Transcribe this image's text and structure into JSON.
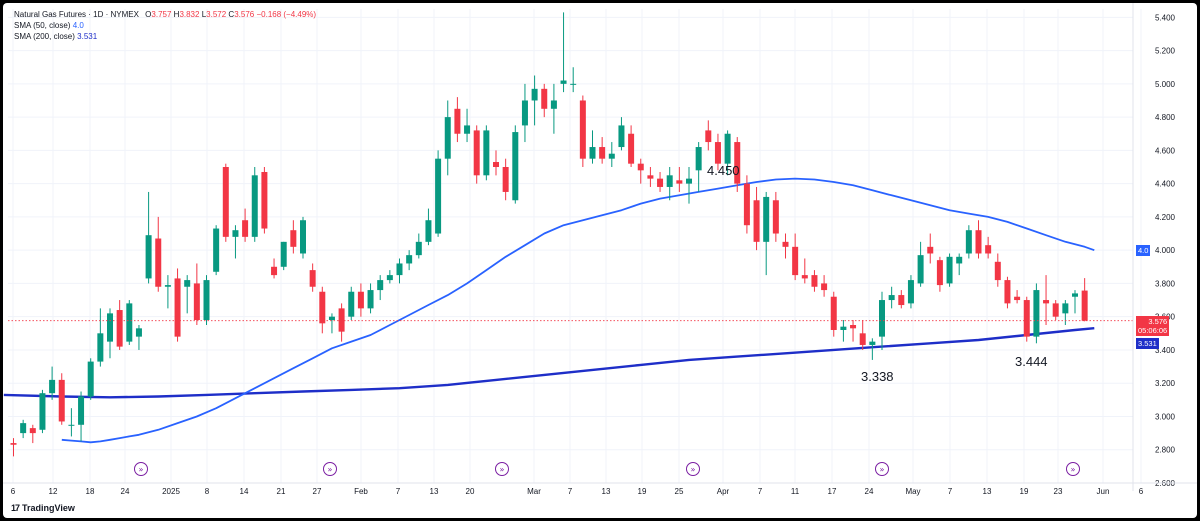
{
  "legend": {
    "title": "Natural Gas Futures · 1D · NYMEX",
    "o_label": "O",
    "o": "3.757",
    "h_label": "H",
    "h": "3.832",
    "l_label": "L",
    "l": "3.572",
    "c_label": "C",
    "c": "3.576",
    "change": "−0.168 (−4.49%)",
    "sma50_label": "SMA (50, close)",
    "sma50_value": "4.0",
    "sma200_label": "SMA (200, close)",
    "sma200_value": "3.531"
  },
  "price_tags": {
    "sma50": "4.0",
    "last": "3.576",
    "countdown": "05:06:06",
    "sma200": "3.531"
  },
  "annotations": [
    "4.450",
    "3.338",
    "3.444"
  ],
  "branding": {
    "logo": "17",
    "name": "TradingView"
  },
  "colors": {
    "up": "#089981",
    "down": "#f23645",
    "sma50": "#2962ff",
    "sma200": "#1e2ec8",
    "last_tag": "#f23645",
    "sma200_tag": "#1e2ec8",
    "sma50_tag": "#2962ff"
  },
  "chart_data": {
    "type": "candlestick",
    "y_ticks": [
      "2.600",
      "2.800",
      "3.000",
      "3.200",
      "3.400",
      "3.600",
      "3.800",
      "4.000",
      "4.200",
      "4.400",
      "4.600",
      "4.800",
      "5.000",
      "5.200",
      "5.400"
    ],
    "ylim": [
      2.6,
      5.45
    ],
    "x_ticks": [
      "6",
      "12",
      "18",
      "24",
      "2025",
      "8",
      "14",
      "21",
      "27",
      "Feb",
      "7",
      "13",
      "20",
      "Mar",
      "7",
      "13",
      "19",
      "25",
      "Apr",
      "7",
      "11",
      "17",
      "24",
      "May",
      "7",
      "13",
      "19",
      "23",
      "Jun",
      "6"
    ],
    "candles": [
      {
        "o": 2.84,
        "h": 2.87,
        "l": 2.76,
        "c": 2.83
      },
      {
        "o": 2.9,
        "h": 2.98,
        "l": 2.87,
        "c": 2.96
      },
      {
        "o": 2.93,
        "h": 2.95,
        "l": 2.84,
        "c": 2.9
      },
      {
        "o": 2.92,
        "h": 3.16,
        "l": 2.9,
        "c": 3.14
      },
      {
        "o": 3.14,
        "h": 3.3,
        "l": 3.1,
        "c": 3.22
      },
      {
        "o": 3.22,
        "h": 3.26,
        "l": 2.95,
        "c": 2.97
      },
      {
        "o": 2.95,
        "h": 3.05,
        "l": 2.88,
        "c": 2.95
      },
      {
        "o": 2.95,
        "h": 3.15,
        "l": 2.85,
        "c": 3.12
      },
      {
        "o": 3.12,
        "h": 3.35,
        "l": 3.1,
        "c": 3.33
      },
      {
        "o": 3.33,
        "h": 3.65,
        "l": 3.3,
        "c": 3.5
      },
      {
        "o": 3.45,
        "h": 3.65,
        "l": 3.35,
        "c": 3.62
      },
      {
        "o": 3.64,
        "h": 3.7,
        "l": 3.4,
        "c": 3.42
      },
      {
        "o": 3.45,
        "h": 3.7,
        "l": 3.43,
        "c": 3.68
      },
      {
        "o": 3.48,
        "h": 3.55,
        "l": 3.4,
        "c": 3.53
      },
      {
        "o": 3.83,
        "h": 4.35,
        "l": 3.8,
        "c": 4.09
      },
      {
        "o": 4.07,
        "h": 4.2,
        "l": 3.75,
        "c": 3.78
      },
      {
        "o": 3.78,
        "h": 3.85,
        "l": 3.65,
        "c": 3.79
      },
      {
        "o": 3.83,
        "h": 3.89,
        "l": 3.45,
        "c": 3.48
      },
      {
        "o": 3.78,
        "h": 3.85,
        "l": 3.62,
        "c": 3.82
      },
      {
        "o": 3.8,
        "h": 3.92,
        "l": 3.55,
        "c": 3.58
      },
      {
        "o": 3.58,
        "h": 3.85,
        "l": 3.55,
        "c": 3.82
      },
      {
        "o": 3.87,
        "h": 4.15,
        "l": 3.85,
        "c": 4.13
      },
      {
        "o": 4.5,
        "h": 4.52,
        "l": 4.05,
        "c": 4.08
      },
      {
        "o": 4.08,
        "h": 4.15,
        "l": 3.95,
        "c": 4.12
      },
      {
        "o": 4.18,
        "h": 4.25,
        "l": 4.05,
        "c": 4.08
      },
      {
        "o": 4.08,
        "h": 4.5,
        "l": 4.05,
        "c": 4.45
      },
      {
        "o": 4.47,
        "h": 4.5,
        "l": 4.1,
        "c": 4.13
      },
      {
        "o": 3.9,
        "h": 3.95,
        "l": 3.83,
        "c": 3.85
      },
      {
        "o": 3.9,
        "h": 4.05,
        "l": 3.88,
        "c": 4.05
      },
      {
        "o": 4.12,
        "h": 4.18,
        "l": 3.98,
        "c": 4.02
      },
      {
        "o": 3.98,
        "h": 4.2,
        "l": 3.95,
        "c": 4.18
      },
      {
        "o": 3.88,
        "h": 3.92,
        "l": 3.75,
        "c": 3.78
      },
      {
        "o": 3.75,
        "h": 3.78,
        "l": 3.5,
        "c": 3.56
      },
      {
        "o": 3.58,
        "h": 3.62,
        "l": 3.5,
        "c": 3.6
      },
      {
        "o": 3.65,
        "h": 3.68,
        "l": 3.45,
        "c": 3.51
      },
      {
        "o": 3.6,
        "h": 3.78,
        "l": 3.58,
        "c": 3.75
      },
      {
        "o": 3.75,
        "h": 3.8,
        "l": 3.6,
        "c": 3.65
      },
      {
        "o": 3.65,
        "h": 3.8,
        "l": 3.62,
        "c": 3.76
      },
      {
        "o": 3.76,
        "h": 3.85,
        "l": 3.7,
        "c": 3.82
      },
      {
        "o": 3.82,
        "h": 3.88,
        "l": 3.8,
        "c": 3.85
      },
      {
        "o": 3.85,
        "h": 3.95,
        "l": 3.8,
        "c": 3.92
      },
      {
        "o": 3.92,
        "h": 4.0,
        "l": 3.88,
        "c": 3.97
      },
      {
        "o": 3.97,
        "h": 4.1,
        "l": 3.95,
        "c": 4.05
      },
      {
        "o": 4.05,
        "h": 4.25,
        "l": 4.03,
        "c": 4.18
      },
      {
        "o": 4.1,
        "h": 4.6,
        "l": 4.08,
        "c": 4.55
      },
      {
        "o": 4.55,
        "h": 4.9,
        "l": 4.45,
        "c": 4.8
      },
      {
        "o": 4.85,
        "h": 4.92,
        "l": 4.65,
        "c": 4.7
      },
      {
        "o": 4.7,
        "h": 4.85,
        "l": 4.65,
        "c": 4.75
      },
      {
        "o": 4.72,
        "h": 4.75,
        "l": 4.4,
        "c": 4.45
      },
      {
        "o": 4.45,
        "h": 4.75,
        "l": 4.42,
        "c": 4.72
      },
      {
        "o": 4.53,
        "h": 4.6,
        "l": 4.45,
        "c": 4.5
      },
      {
        "o": 4.5,
        "h": 4.55,
        "l": 4.3,
        "c": 4.35
      },
      {
        "o": 4.3,
        "h": 4.75,
        "l": 4.28,
        "c": 4.71
      },
      {
        "o": 4.75,
        "h": 5.0,
        "l": 4.65,
        "c": 4.9
      },
      {
        "o": 4.9,
        "h": 5.05,
        "l": 4.75,
        "c": 4.97
      },
      {
        "o": 4.97,
        "h": 5.0,
        "l": 4.8,
        "c": 4.85
      },
      {
        "o": 4.85,
        "h": 5.0,
        "l": 4.7,
        "c": 4.9
      },
      {
        "o": 5.0,
        "h": 5.43,
        "l": 4.95,
        "c": 5.02
      },
      {
        "o": 5.0,
        "h": 5.1,
        "l": 4.95,
        "c": 5.0
      },
      {
        "o": 4.9,
        "h": 4.93,
        "l": 4.5,
        "c": 4.55
      },
      {
        "o": 4.55,
        "h": 4.72,
        "l": 4.52,
        "c": 4.62
      },
      {
        "o": 4.62,
        "h": 4.68,
        "l": 4.52,
        "c": 4.55
      },
      {
        "o": 4.55,
        "h": 4.65,
        "l": 4.5,
        "c": 4.58
      },
      {
        "o": 4.62,
        "h": 4.8,
        "l": 4.6,
        "c": 4.75
      },
      {
        "o": 4.7,
        "h": 4.75,
        "l": 4.5,
        "c": 4.52
      },
      {
        "o": 4.52,
        "h": 4.55,
        "l": 4.4,
        "c": 4.48
      },
      {
        "o": 4.45,
        "h": 4.5,
        "l": 4.38,
        "c": 4.43
      },
      {
        "o": 4.43,
        "h": 4.47,
        "l": 4.35,
        "c": 4.38
      },
      {
        "o": 4.38,
        "h": 4.5,
        "l": 4.3,
        "c": 4.45
      },
      {
        "o": 4.42,
        "h": 4.5,
        "l": 4.35,
        "c": 4.4
      },
      {
        "o": 4.4,
        "h": 4.5,
        "l": 4.28,
        "c": 4.43
      },
      {
        "o": 4.48,
        "h": 4.65,
        "l": 4.35,
        "c": 4.62
      },
      {
        "o": 4.72,
        "h": 4.78,
        "l": 4.6,
        "c": 4.65
      },
      {
        "o": 4.65,
        "h": 4.7,
        "l": 4.48,
        "c": 4.52
      },
      {
        "o": 4.52,
        "h": 4.72,
        "l": 4.45,
        "c": 4.7
      },
      {
        "o": 4.65,
        "h": 4.68,
        "l": 4.35,
        "c": 4.4
      },
      {
        "o": 4.4,
        "h": 4.45,
        "l": 4.1,
        "c": 4.15
      },
      {
        "o": 4.3,
        "h": 4.38,
        "l": 4.0,
        "c": 4.05
      },
      {
        "o": 4.05,
        "h": 4.35,
        "l": 3.85,
        "c": 4.32
      },
      {
        "o": 4.3,
        "h": 4.35,
        "l": 4.05,
        "c": 4.1
      },
      {
        "o": 4.05,
        "h": 4.1,
        "l": 3.95,
        "c": 4.02
      },
      {
        "o": 4.02,
        "h": 4.1,
        "l": 3.82,
        "c": 3.85
      },
      {
        "o": 3.85,
        "h": 3.95,
        "l": 3.8,
        "c": 3.83
      },
      {
        "o": 3.85,
        "h": 3.88,
        "l": 3.75,
        "c": 3.78
      },
      {
        "o": 3.8,
        "h": 3.85,
        "l": 3.72,
        "c": 3.76
      },
      {
        "o": 3.72,
        "h": 3.75,
        "l": 3.48,
        "c": 3.52
      },
      {
        "o": 3.52,
        "h": 3.58,
        "l": 3.45,
        "c": 3.54
      },
      {
        "o": 3.55,
        "h": 3.58,
        "l": 3.45,
        "c": 3.53
      },
      {
        "o": 3.5,
        "h": 3.58,
        "l": 3.4,
        "c": 3.43
      },
      {
        "o": 3.43,
        "h": 3.47,
        "l": 3.34,
        "c": 3.45
      },
      {
        "o": 3.48,
        "h": 3.75,
        "l": 3.4,
        "c": 3.7
      },
      {
        "o": 3.7,
        "h": 3.78,
        "l": 3.65,
        "c": 3.73
      },
      {
        "o": 3.73,
        "h": 3.76,
        "l": 3.65,
        "c": 3.67
      },
      {
        "o": 3.68,
        "h": 3.85,
        "l": 3.65,
        "c": 3.82
      },
      {
        "o": 3.8,
        "h": 4.05,
        "l": 3.78,
        "c": 3.97
      },
      {
        "o": 4.02,
        "h": 4.1,
        "l": 3.92,
        "c": 3.98
      },
      {
        "o": 3.94,
        "h": 3.96,
        "l": 3.75,
        "c": 3.79
      },
      {
        "o": 3.8,
        "h": 3.98,
        "l": 3.78,
        "c": 3.96
      },
      {
        "o": 3.92,
        "h": 3.98,
        "l": 3.85,
        "c": 3.96
      },
      {
        "o": 3.98,
        "h": 4.15,
        "l": 3.95,
        "c": 4.12
      },
      {
        "o": 4.12,
        "h": 4.18,
        "l": 3.95,
        "c": 3.98
      },
      {
        "o": 4.03,
        "h": 4.08,
        "l": 3.95,
        "c": 3.98
      },
      {
        "o": 3.93,
        "h": 3.98,
        "l": 3.78,
        "c": 3.82
      },
      {
        "o": 3.82,
        "h": 3.84,
        "l": 3.65,
        "c": 3.68
      },
      {
        "o": 3.72,
        "h": 3.76,
        "l": 3.68,
        "c": 3.7
      },
      {
        "o": 3.7,
        "h": 3.72,
        "l": 3.45,
        "c": 3.48
      },
      {
        "o": 3.48,
        "h": 3.8,
        "l": 3.44,
        "c": 3.76
      },
      {
        "o": 3.7,
        "h": 3.85,
        "l": 3.55,
        "c": 3.68
      },
      {
        "o": 3.68,
        "h": 3.7,
        "l": 3.58,
        "c": 3.6
      },
      {
        "o": 3.62,
        "h": 3.7,
        "l": 3.55,
        "c": 3.68
      },
      {
        "o": 3.72,
        "h": 3.76,
        "l": 3.62,
        "c": 3.74
      },
      {
        "o": 3.757,
        "h": 3.832,
        "l": 3.572,
        "c": 3.576
      }
    ],
    "sma50": [
      [
        5,
        2.86
      ],
      [
        6,
        2.855
      ],
      [
        7,
        2.85
      ],
      [
        8,
        2.845
      ],
      [
        9,
        2.85
      ],
      [
        10,
        2.86
      ],
      [
        11,
        2.87
      ],
      [
        12,
        2.88
      ],
      [
        13,
        2.89
      ],
      [
        15,
        2.92
      ],
      [
        17,
        2.96
      ],
      [
        19,
        3.0
      ],
      [
        21,
        3.05
      ],
      [
        23,
        3.11
      ],
      [
        25,
        3.17
      ],
      [
        27,
        3.23
      ],
      [
        29,
        3.29
      ],
      [
        31,
        3.35
      ],
      [
        33,
        3.41
      ],
      [
        35,
        3.45
      ],
      [
        37,
        3.49
      ],
      [
        39,
        3.55
      ],
      [
        41,
        3.61
      ],
      [
        43,
        3.67
      ],
      [
        45,
        3.73
      ],
      [
        47,
        3.8
      ],
      [
        49,
        3.88
      ],
      [
        51,
        3.96
      ],
      [
        53,
        4.03
      ],
      [
        55,
        4.1
      ],
      [
        57,
        4.15
      ],
      [
        59,
        4.18
      ],
      [
        61,
        4.21
      ],
      [
        63,
        4.24
      ],
      [
        65,
        4.28
      ],
      [
        67,
        4.31
      ],
      [
        69,
        4.33
      ],
      [
        71,
        4.35
      ],
      [
        73,
        4.37
      ],
      [
        75,
        4.39
      ],
      [
        77,
        4.41
      ],
      [
        79,
        4.425
      ],
      [
        81,
        4.43
      ],
      [
        83,
        4.425
      ],
      [
        85,
        4.41
      ],
      [
        87,
        4.39
      ],
      [
        89,
        4.36
      ],
      [
        91,
        4.33
      ],
      [
        93,
        4.3
      ],
      [
        95,
        4.27
      ],
      [
        97,
        4.24
      ],
      [
        99,
        4.22
      ],
      [
        101,
        4.2
      ],
      [
        103,
        4.17
      ],
      [
        105,
        4.13
      ],
      [
        107,
        4.09
      ],
      [
        109,
        4.05
      ],
      [
        111,
        4.02
      ],
      [
        112,
        4.0
      ]
    ],
    "sma200": [
      [
        -1,
        3.13
      ],
      [
        5,
        3.12
      ],
      [
        10,
        3.115
      ],
      [
        15,
        3.12
      ],
      [
        20,
        3.13
      ],
      [
        25,
        3.14
      ],
      [
        30,
        3.15
      ],
      [
        35,
        3.16
      ],
      [
        40,
        3.17
      ],
      [
        45,
        3.19
      ],
      [
        50,
        3.22
      ],
      [
        55,
        3.25
      ],
      [
        60,
        3.28
      ],
      [
        65,
        3.31
      ],
      [
        70,
        3.34
      ],
      [
        75,
        3.36
      ],
      [
        80,
        3.38
      ],
      [
        85,
        3.4
      ],
      [
        90,
        3.42
      ],
      [
        95,
        3.44
      ],
      [
        100,
        3.46
      ],
      [
        105,
        3.49
      ],
      [
        110,
        3.52
      ],
      [
        112,
        3.531
      ]
    ]
  }
}
